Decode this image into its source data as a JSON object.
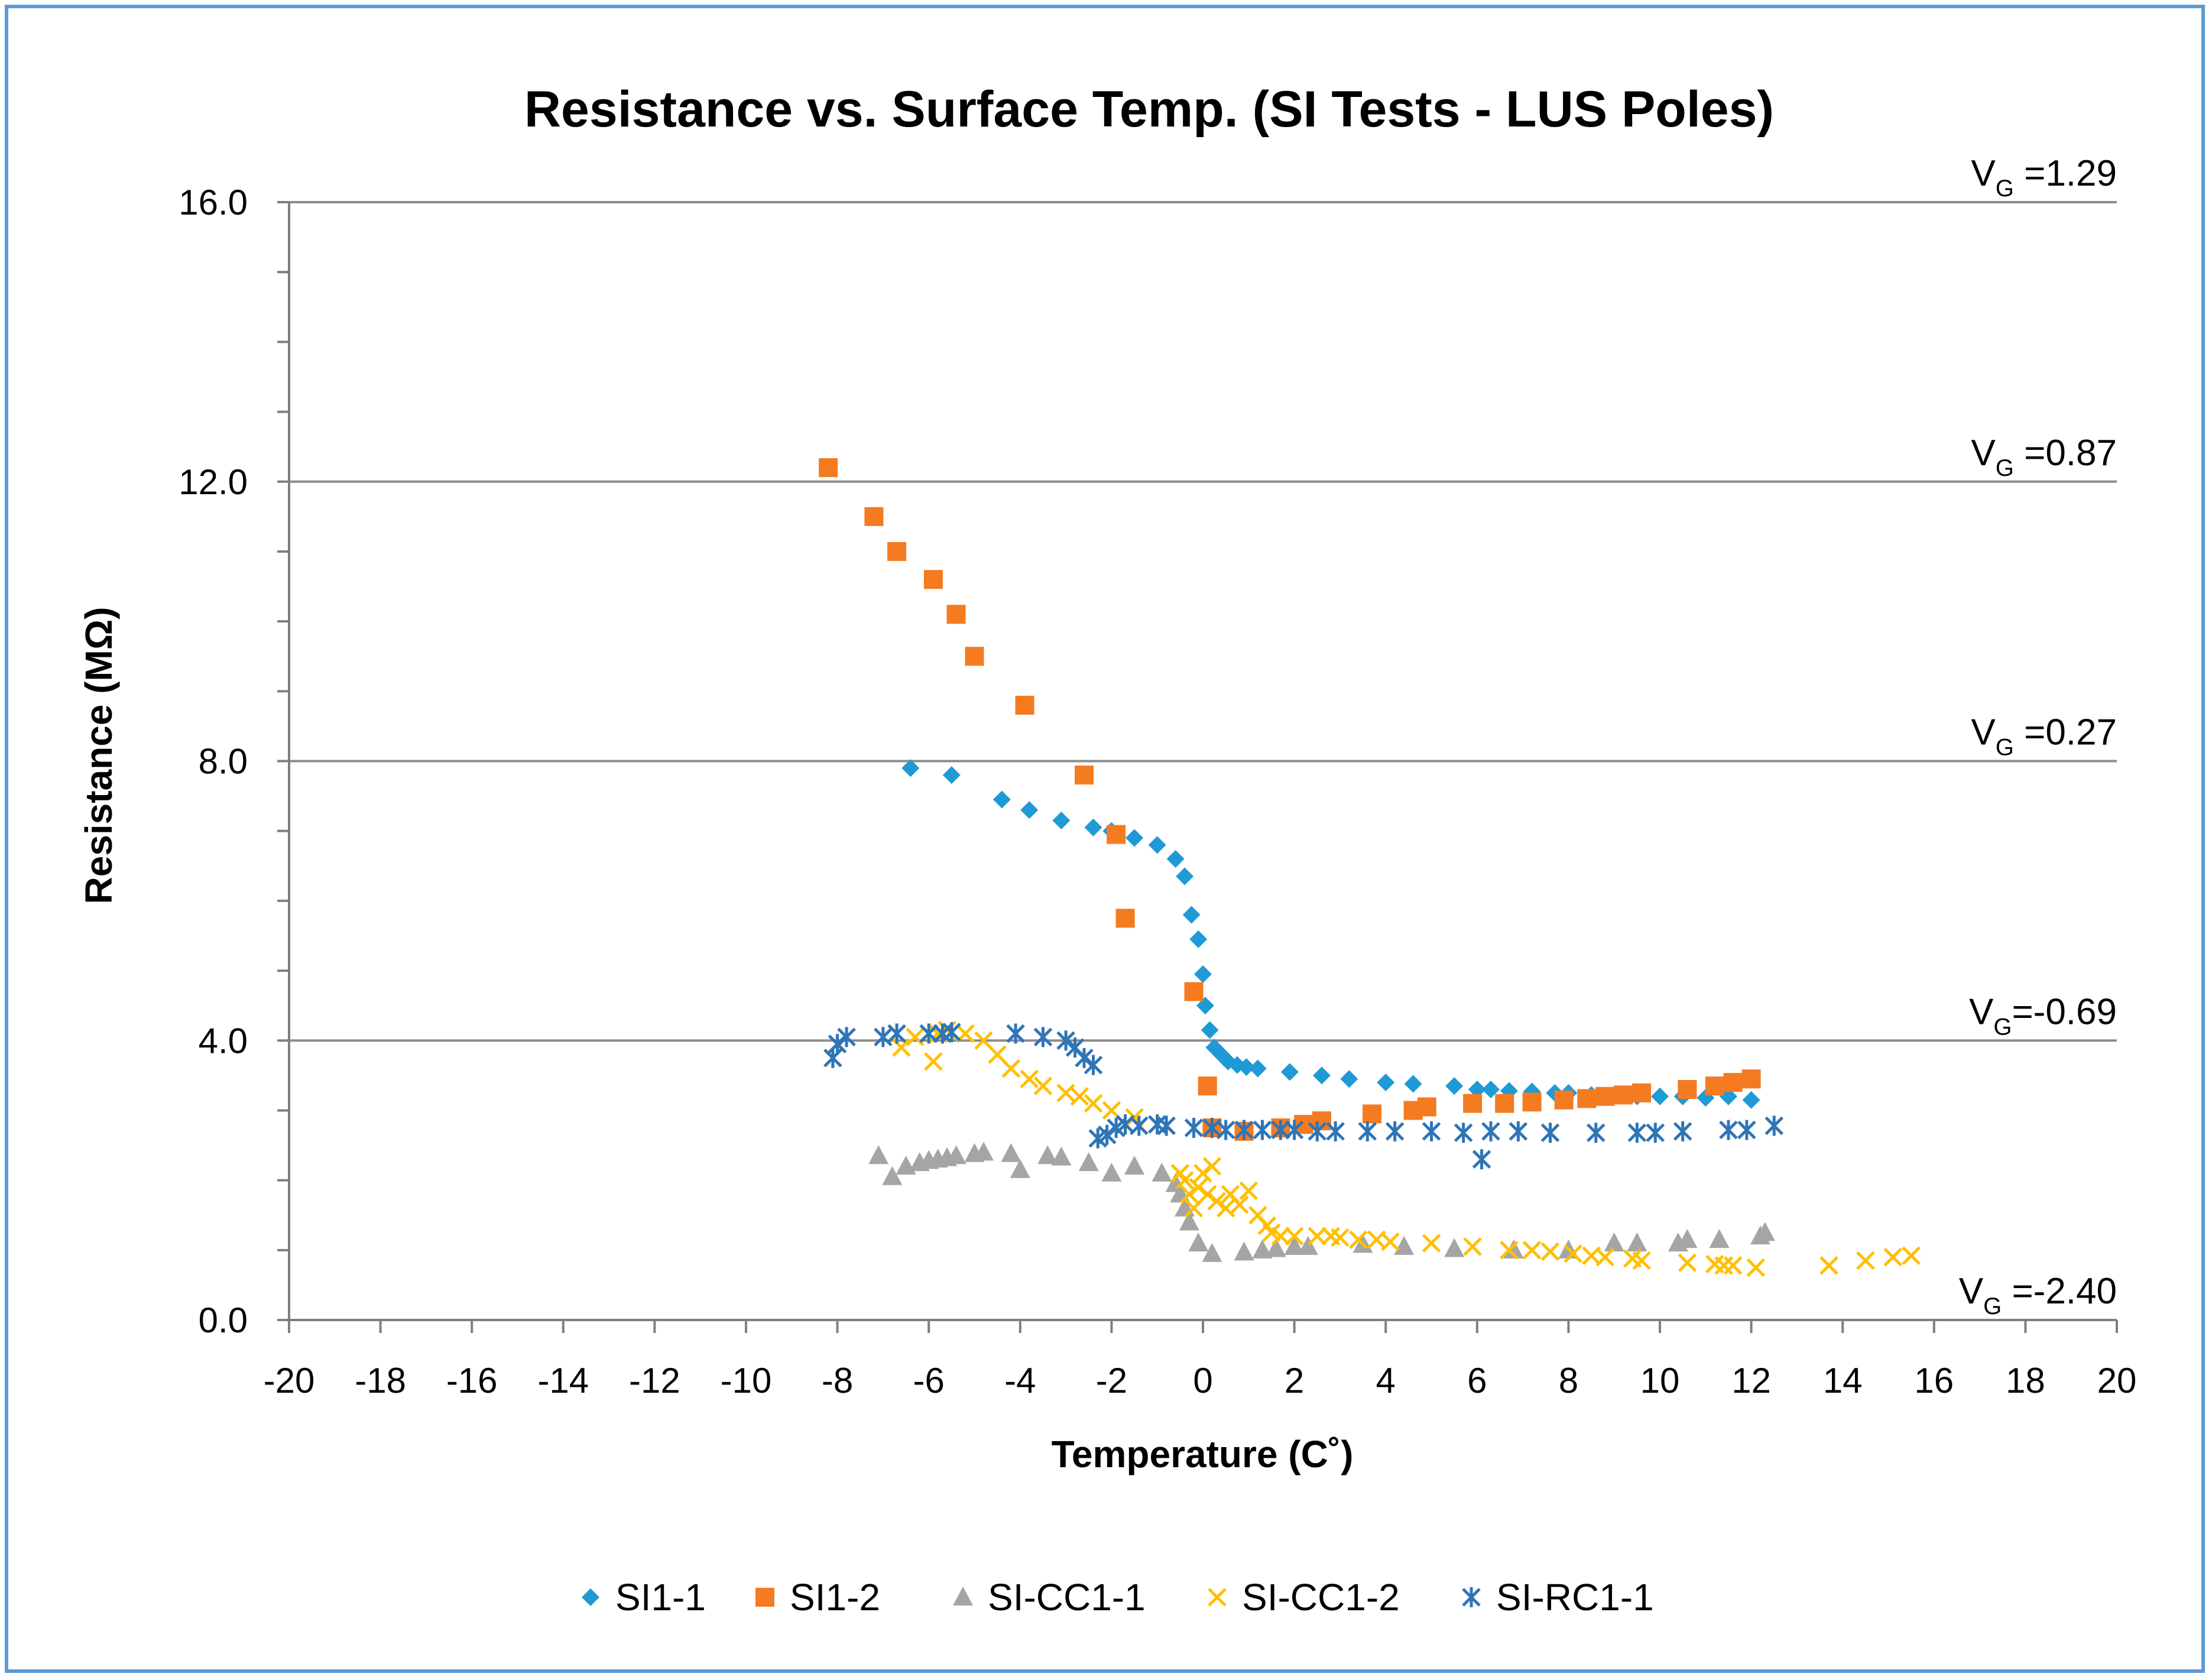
{
  "chart_data": {
    "type": "scatter",
    "title": "Resistance vs. Surface Temp. (SI Tests - LUS Poles)",
    "xlabel": "Temperature (C˚)",
    "ylabel": "Resistance (MΩ)",
    "xlim": [
      -20,
      20
    ],
    "ylim": [
      0,
      16
    ],
    "xticks": [
      -20,
      -18,
      -16,
      -14,
      -12,
      -10,
      -8,
      -6,
      -4,
      -2,
      0,
      2,
      4,
      6,
      8,
      10,
      12,
      14,
      16,
      18,
      20
    ],
    "yticks": [
      0,
      4,
      8,
      12,
      16
    ],
    "ytick_labels": [
      "0.0",
      "4.0",
      "8.0",
      "12.0",
      "16.0"
    ],
    "reference_lines": [
      {
        "y": 16,
        "label": "V",
        "sub": "G",
        "suffix": " =1.29"
      },
      {
        "y": 12,
        "label": "V",
        "sub": "G",
        "suffix": " =0.87"
      },
      {
        "y": 8,
        "label": "V",
        "sub": "G",
        "suffix": " =0.27"
      },
      {
        "y": 4,
        "label": "V",
        "sub": "G",
        "suffix": "=-0.69"
      },
      {
        "y": 0,
        "label": "V",
        "sub": "G",
        "suffix": " =-2.40"
      }
    ],
    "series": [
      {
        "name": "SI1-1",
        "marker": "diamond",
        "color": "#1f9ad6",
        "points": [
          [
            -6.4,
            7.9
          ],
          [
            -5.5,
            7.8
          ],
          [
            -4.4,
            7.45
          ],
          [
            -3.8,
            7.3
          ],
          [
            -3.1,
            7.15
          ],
          [
            -2.4,
            7.05
          ],
          [
            -2.0,
            7.0
          ],
          [
            -1.5,
            6.9
          ],
          [
            -1.0,
            6.8
          ],
          [
            -0.6,
            6.6
          ],
          [
            -0.4,
            6.35
          ],
          [
            -0.25,
            5.8
          ],
          [
            -0.1,
            5.45
          ],
          [
            0.0,
            4.95
          ],
          [
            0.05,
            4.5
          ],
          [
            0.15,
            4.15
          ],
          [
            0.25,
            3.9
          ],
          [
            0.4,
            3.8
          ],
          [
            0.55,
            3.7
          ],
          [
            0.75,
            3.65
          ],
          [
            0.95,
            3.62
          ],
          [
            1.2,
            3.6
          ],
          [
            1.9,
            3.55
          ],
          [
            2.6,
            3.5
          ],
          [
            3.2,
            3.45
          ],
          [
            4.0,
            3.4
          ],
          [
            4.6,
            3.38
          ],
          [
            5.5,
            3.35
          ],
          [
            6.0,
            3.3
          ],
          [
            6.3,
            3.3
          ],
          [
            6.7,
            3.28
          ],
          [
            7.2,
            3.27
          ],
          [
            7.7,
            3.25
          ],
          [
            8.0,
            3.25
          ],
          [
            8.5,
            3.22
          ],
          [
            9.0,
            3.22
          ],
          [
            9.5,
            3.2
          ],
          [
            10.0,
            3.2
          ],
          [
            10.5,
            3.2
          ],
          [
            11.0,
            3.18
          ],
          [
            11.5,
            3.2
          ],
          [
            12.0,
            3.15
          ]
        ]
      },
      {
        "name": "SI1-2",
        "marker": "square",
        "color": "#f47b20",
        "points": [
          [
            -8.2,
            12.2
          ],
          [
            -7.2,
            11.5
          ],
          [
            -6.7,
            11.0
          ],
          [
            -5.9,
            10.6
          ],
          [
            -5.4,
            10.1
          ],
          [
            -5.0,
            9.5
          ],
          [
            -3.9,
            8.8
          ],
          [
            -2.6,
            7.8
          ],
          [
            -1.9,
            6.95
          ],
          [
            -1.7,
            5.75
          ],
          [
            -0.2,
            4.7
          ],
          [
            0.1,
            3.35
          ],
          [
            0.2,
            2.75
          ],
          [
            0.9,
            2.7
          ],
          [
            1.7,
            2.75
          ],
          [
            2.2,
            2.8
          ],
          [
            2.6,
            2.85
          ],
          [
            3.7,
            2.95
          ],
          [
            4.6,
            3.0
          ],
          [
            4.9,
            3.05
          ],
          [
            5.9,
            3.1
          ],
          [
            6.6,
            3.1
          ],
          [
            7.2,
            3.12
          ],
          [
            7.9,
            3.15
          ],
          [
            8.4,
            3.17
          ],
          [
            8.8,
            3.2
          ],
          [
            9.2,
            3.22
          ],
          [
            9.6,
            3.25
          ],
          [
            10.6,
            3.3
          ],
          [
            11.2,
            3.35
          ],
          [
            11.6,
            3.4
          ],
          [
            12.0,
            3.45
          ]
        ]
      },
      {
        "name": "SI-CC1-1",
        "marker": "triangle",
        "color": "#a5a5a5",
        "points": [
          [
            -7.1,
            2.35
          ],
          [
            -6.8,
            2.05
          ],
          [
            -6.5,
            2.2
          ],
          [
            -6.2,
            2.25
          ],
          [
            -6.0,
            2.28
          ],
          [
            -5.8,
            2.3
          ],
          [
            -5.6,
            2.32
          ],
          [
            -5.4,
            2.35
          ],
          [
            -5.0,
            2.38
          ],
          [
            -4.8,
            2.4
          ],
          [
            -4.2,
            2.38
          ],
          [
            -4.0,
            2.15
          ],
          [
            -3.4,
            2.35
          ],
          [
            -3.1,
            2.33
          ],
          [
            -2.5,
            2.25
          ],
          [
            -2.0,
            2.1
          ],
          [
            -1.5,
            2.2
          ],
          [
            -0.9,
            2.1
          ],
          [
            -0.6,
            1.95
          ],
          [
            -0.5,
            1.8
          ],
          [
            -0.4,
            1.6
          ],
          [
            -0.3,
            1.4
          ],
          [
            -0.1,
            1.1
          ],
          [
            0.2,
            0.95
          ],
          [
            0.9,
            0.97
          ],
          [
            1.3,
            1.0
          ],
          [
            1.6,
            1.02
          ],
          [
            2.0,
            1.05
          ],
          [
            2.3,
            1.05
          ],
          [
            3.5,
            1.08
          ],
          [
            4.4,
            1.05
          ],
          [
            5.5,
            1.02
          ],
          [
            6.8,
            1.0
          ],
          [
            8.0,
            1.0
          ],
          [
            9.0,
            1.1
          ],
          [
            9.5,
            1.1
          ],
          [
            10.4,
            1.1
          ],
          [
            10.6,
            1.15
          ],
          [
            11.3,
            1.15
          ],
          [
            12.2,
            1.2
          ],
          [
            12.3,
            1.25
          ]
        ]
      },
      {
        "name": "SI-CC1-2",
        "marker": "x",
        "color": "#ffc000",
        "points": [
          [
            -6.6,
            3.9
          ],
          [
            -6.3,
            4.05
          ],
          [
            -5.9,
            3.7
          ],
          [
            -5.8,
            4.1
          ],
          [
            -5.6,
            4.15
          ],
          [
            -5.2,
            4.1
          ],
          [
            -4.8,
            4.0
          ],
          [
            -4.5,
            3.8
          ],
          [
            -4.2,
            3.6
          ],
          [
            -3.8,
            3.45
          ],
          [
            -3.5,
            3.35
          ],
          [
            -3.0,
            3.25
          ],
          [
            -2.7,
            3.2
          ],
          [
            -2.4,
            3.1
          ],
          [
            -2.0,
            3.0
          ],
          [
            -1.5,
            2.9
          ],
          [
            -0.5,
            2.1
          ],
          [
            -0.4,
            2.0
          ],
          [
            -0.3,
            1.8
          ],
          [
            -0.2,
            1.6
          ],
          [
            -0.1,
            1.9
          ],
          [
            0.0,
            2.1
          ],
          [
            0.1,
            1.8
          ],
          [
            0.2,
            2.2
          ],
          [
            0.3,
            1.7
          ],
          [
            0.5,
            1.6
          ],
          [
            0.6,
            1.8
          ],
          [
            0.8,
            1.65
          ],
          [
            1.0,
            1.85
          ],
          [
            1.2,
            1.5
          ],
          [
            1.4,
            1.35
          ],
          [
            1.5,
            1.25
          ],
          [
            1.7,
            1.2
          ],
          [
            2.0,
            1.2
          ],
          [
            2.5,
            1.2
          ],
          [
            2.8,
            1.2
          ],
          [
            3.0,
            1.18
          ],
          [
            3.4,
            1.15
          ],
          [
            3.8,
            1.15
          ],
          [
            4.1,
            1.12
          ],
          [
            5.0,
            1.1
          ],
          [
            5.9,
            1.05
          ],
          [
            6.7,
            1.0
          ],
          [
            7.2,
            1.0
          ],
          [
            7.6,
            0.98
          ],
          [
            8.1,
            0.95
          ],
          [
            8.5,
            0.92
          ],
          [
            8.8,
            0.9
          ],
          [
            9.4,
            0.88
          ],
          [
            9.6,
            0.85
          ],
          [
            10.6,
            0.82
          ],
          [
            11.2,
            0.8
          ],
          [
            11.4,
            0.78
          ],
          [
            11.6,
            0.78
          ],
          [
            12.1,
            0.75
          ],
          [
            13.7,
            0.78
          ],
          [
            14.5,
            0.85
          ],
          [
            15.1,
            0.9
          ],
          [
            15.5,
            0.92
          ]
        ]
      },
      {
        "name": "SI-RC1-1",
        "marker": "star",
        "color": "#2e75b6",
        "points": [
          [
            -8.1,
            3.75
          ],
          [
            -8.0,
            3.95
          ],
          [
            -7.8,
            4.05
          ],
          [
            -7.0,
            4.05
          ],
          [
            -6.7,
            4.1
          ],
          [
            -6.0,
            4.1
          ],
          [
            -5.7,
            4.1
          ],
          [
            -5.5,
            4.12
          ],
          [
            -4.1,
            4.1
          ],
          [
            -3.5,
            4.05
          ],
          [
            -3.0,
            4.0
          ],
          [
            -2.8,
            3.9
          ],
          [
            -2.6,
            3.75
          ],
          [
            -2.4,
            3.65
          ],
          [
            -2.3,
            2.6
          ],
          [
            -2.1,
            2.65
          ],
          [
            -1.9,
            2.75
          ],
          [
            -1.7,
            2.8
          ],
          [
            -1.4,
            2.78
          ],
          [
            -1.0,
            2.8
          ],
          [
            -0.8,
            2.78
          ],
          [
            -0.2,
            2.75
          ],
          [
            0.2,
            2.75
          ],
          [
            0.5,
            2.72
          ],
          [
            0.9,
            2.72
          ],
          [
            1.3,
            2.72
          ],
          [
            1.7,
            2.72
          ],
          [
            2.0,
            2.72
          ],
          [
            2.5,
            2.7
          ],
          [
            2.9,
            2.7
          ],
          [
            3.6,
            2.7
          ],
          [
            4.2,
            2.7
          ],
          [
            5.0,
            2.7
          ],
          [
            5.7,
            2.68
          ],
          [
            6.1,
            2.3
          ],
          [
            6.3,
            2.7
          ],
          [
            6.9,
            2.7
          ],
          [
            7.6,
            2.68
          ],
          [
            8.6,
            2.68
          ],
          [
            9.5,
            2.68
          ],
          [
            9.9,
            2.68
          ],
          [
            10.5,
            2.7
          ],
          [
            11.5,
            2.72
          ],
          [
            11.9,
            2.72
          ],
          [
            12.5,
            2.78
          ]
        ]
      }
    ]
  }
}
